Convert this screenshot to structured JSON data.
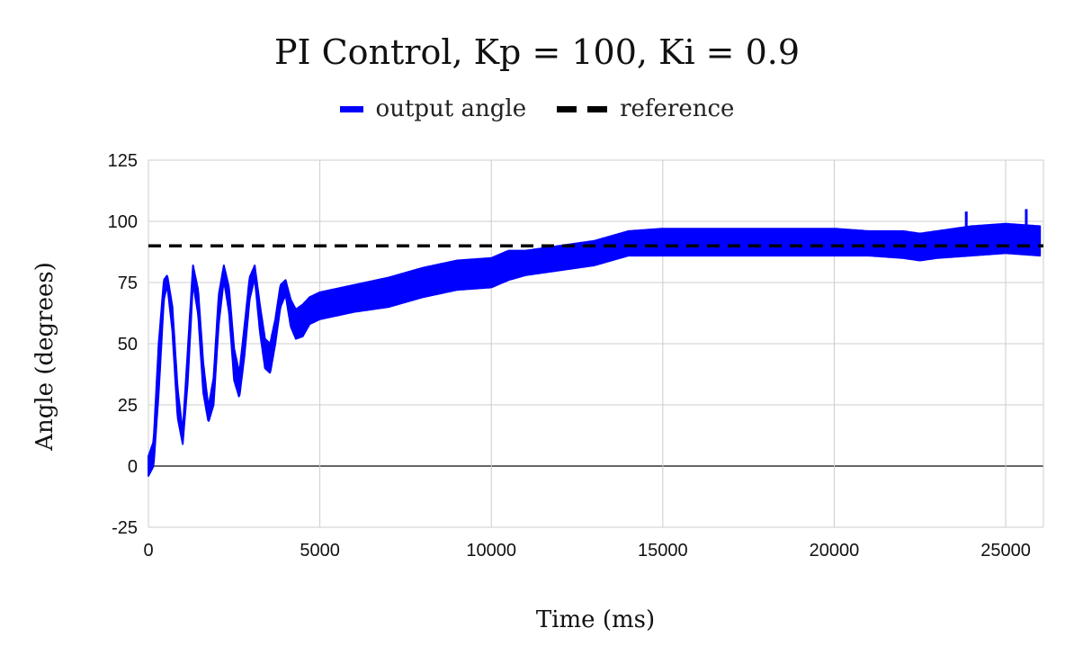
{
  "chart_data": {
    "type": "line",
    "title": "PI Control, Kp = 100, Ki = 0.9",
    "xlabel": "Time (ms)",
    "ylabel": "Angle (degrees)",
    "xlim": [
      0,
      26100
    ],
    "ylim": [
      -25,
      125
    ],
    "xticks": [
      0,
      5000,
      10000,
      15000,
      20000,
      25000
    ],
    "yticks": [
      -25,
      0,
      25,
      50,
      75,
      100,
      125
    ],
    "grid": true,
    "legend_position": "top",
    "series": [
      {
        "name": "output angle",
        "color": "#0000ff",
        "style": "solid",
        "x": [
          0,
          150,
          300,
          450,
          550,
          700,
          850,
          1000,
          1150,
          1300,
          1450,
          1600,
          1750,
          1900,
          2050,
          2200,
          2350,
          2500,
          2650,
          2800,
          2950,
          3100,
          3250,
          3400,
          3550,
          3700,
          3850,
          4000,
          4150,
          4300,
          4500,
          4700,
          5000,
          6000,
          7000,
          8000,
          9000,
          10000,
          10500,
          11000,
          12000,
          13000,
          13500,
          14000,
          15000,
          16000,
          17000,
          18000,
          19000,
          20000,
          21000,
          22000,
          22500,
          23000,
          24000,
          25000,
          26000
        ],
        "y_low": [
          -4,
          0,
          30,
          68,
          74,
          55,
          20,
          9,
          35,
          75,
          62,
          30,
          18,
          25,
          58,
          76,
          63,
          35,
          28,
          45,
          68,
          77,
          55,
          40,
          38,
          50,
          65,
          70,
          57,
          52,
          53,
          58,
          60,
          63,
          65,
          69,
          72,
          73,
          76,
          78,
          80,
          82,
          84,
          86,
          86,
          86,
          86,
          86,
          86,
          86,
          86,
          85,
          84,
          85,
          86,
          87,
          86
        ],
        "y_high": [
          4,
          10,
          50,
          76,
          78,
          65,
          32,
          14,
          48,
          82,
          72,
          42,
          24,
          36,
          70,
          82,
          73,
          48,
          38,
          57,
          77,
          82,
          66,
          52,
          50,
          60,
          74,
          76,
          68,
          64,
          66,
          69,
          71,
          74,
          77,
          81,
          84,
          85,
          88,
          88,
          90,
          92,
          94,
          96,
          97,
          97,
          97,
          97,
          97,
          97,
          96,
          96,
          95,
          96,
          98,
          99,
          98
        ],
        "spikes": [
          {
            "x": 23850,
            "y": 104
          },
          {
            "x": 25600,
            "y": 105
          }
        ]
      },
      {
        "name": "reference",
        "color": "#000000",
        "style": "dashed",
        "x": [
          0,
          26100
        ],
        "y": [
          90,
          90
        ]
      }
    ]
  }
}
